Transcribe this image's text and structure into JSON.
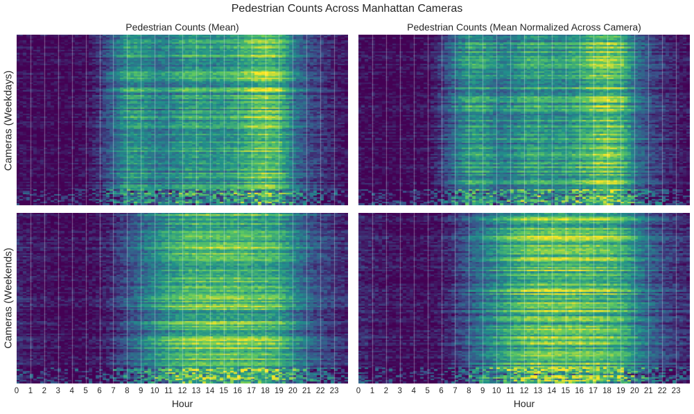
{
  "figure_title": "Pedestrian Counts Across Manhattan Cameras",
  "colormap": [
    "#440154",
    "#3b528b",
    "#21918c",
    "#5ec962",
    "#fde725"
  ],
  "chart_data": [
    {
      "type": "heatmap",
      "title": "Pedestrian Counts (Mean)",
      "xlabel": "",
      "ylabel": "Cameras (Weekdays)",
      "x_ticks": [
        "0",
        "1",
        "2",
        "3",
        "4",
        "5",
        "6",
        "7",
        "8",
        "9",
        "10",
        "11",
        "12",
        "13",
        "14",
        "15",
        "16",
        "17",
        "18",
        "19",
        "20",
        "21",
        "22",
        "23"
      ],
      "grid": true,
      "profile": [
        0.05,
        0.03,
        0.02,
        0.02,
        0.03,
        0.05,
        0.22,
        0.45,
        0.7,
        0.68,
        0.55,
        0.58,
        0.72,
        0.74,
        0.68,
        0.7,
        0.78,
        0.92,
        1.0,
        0.88,
        0.5,
        0.32,
        0.22,
        0.12
      ]
    },
    {
      "type": "heatmap",
      "title": "Pedestrian Counts (Mean Normalized Across Camera)",
      "xlabel": "",
      "ylabel": "",
      "x_ticks": [
        "0",
        "1",
        "2",
        "3",
        "4",
        "5",
        "6",
        "7",
        "8",
        "9",
        "10",
        "11",
        "12",
        "13",
        "14",
        "15",
        "16",
        "17",
        "18",
        "19",
        "20",
        "21",
        "22",
        "23"
      ],
      "grid": true,
      "profile": [
        0.05,
        0.03,
        0.02,
        0.02,
        0.03,
        0.05,
        0.25,
        0.5,
        0.72,
        0.7,
        0.55,
        0.58,
        0.72,
        0.74,
        0.68,
        0.7,
        0.8,
        0.93,
        1.0,
        0.88,
        0.48,
        0.3,
        0.2,
        0.1
      ]
    },
    {
      "type": "heatmap",
      "title": "",
      "xlabel": "Hour",
      "ylabel": "Cameras (Weekends)",
      "x_ticks": [
        "0",
        "1",
        "2",
        "3",
        "4",
        "5",
        "6",
        "7",
        "8",
        "9",
        "10",
        "11",
        "12",
        "13",
        "14",
        "15",
        "16",
        "17",
        "18",
        "19",
        "20",
        "21",
        "22",
        "23"
      ],
      "grid": true,
      "profile": [
        0.15,
        0.1,
        0.07,
        0.05,
        0.04,
        0.05,
        0.1,
        0.2,
        0.35,
        0.5,
        0.65,
        0.78,
        0.88,
        0.92,
        0.93,
        0.92,
        0.92,
        0.9,
        0.88,
        0.82,
        0.6,
        0.42,
        0.3,
        0.22
      ]
    },
    {
      "type": "heatmap",
      "title": "",
      "xlabel": "Hour",
      "ylabel": "",
      "x_ticks": [
        "0",
        "1",
        "2",
        "3",
        "4",
        "5",
        "6",
        "7",
        "8",
        "9",
        "10",
        "11",
        "12",
        "13",
        "14",
        "15",
        "16",
        "17",
        "18",
        "19",
        "20",
        "21",
        "22",
        "23"
      ],
      "grid": true,
      "profile": [
        0.15,
        0.1,
        0.07,
        0.05,
        0.04,
        0.05,
        0.1,
        0.22,
        0.38,
        0.52,
        0.65,
        0.78,
        0.88,
        0.92,
        0.93,
        0.92,
        0.92,
        0.9,
        0.88,
        0.8,
        0.58,
        0.4,
        0.28,
        0.2
      ]
    }
  ]
}
